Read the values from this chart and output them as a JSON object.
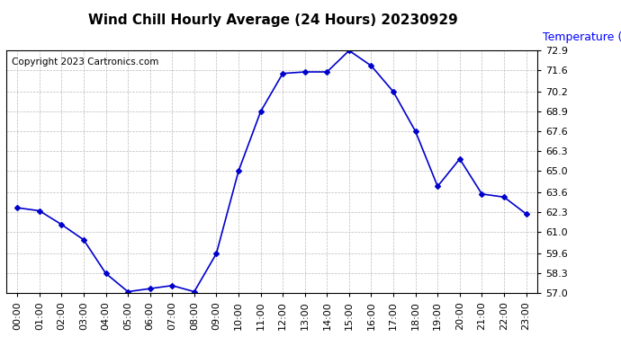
{
  "title": "Wind Chill Hourly Average (24 Hours) 20230929",
  "copyright_text": "Copyright 2023 Cartronics.com",
  "ylabel": "Temperature (°F)",
  "ylabel_color": "#0000ff",
  "hours": [
    0,
    1,
    2,
    3,
    4,
    5,
    6,
    7,
    8,
    9,
    10,
    11,
    12,
    13,
    14,
    15,
    16,
    17,
    18,
    19,
    20,
    21,
    22,
    23
  ],
  "x_labels": [
    "00:00",
    "01:00",
    "02:00",
    "03:00",
    "04:00",
    "05:00",
    "06:00",
    "07:00",
    "08:00",
    "09:00",
    "10:00",
    "11:00",
    "12:00",
    "13:00",
    "14:00",
    "15:00",
    "16:00",
    "17:00",
    "18:00",
    "19:00",
    "20:00",
    "21:00",
    "22:00",
    "23:00"
  ],
  "values": [
    62.6,
    62.4,
    61.5,
    60.5,
    58.3,
    57.1,
    57.3,
    57.5,
    57.1,
    59.6,
    65.0,
    68.9,
    71.4,
    71.5,
    71.5,
    72.9,
    71.9,
    70.2,
    67.6,
    64.0,
    65.8,
    63.5,
    63.3,
    62.2
  ],
  "line_color": "#0000cc",
  "marker": "D",
  "marker_size": 3,
  "ylim_min": 57.0,
  "ylim_max": 72.9,
  "yticks": [
    57.0,
    58.3,
    59.6,
    61.0,
    62.3,
    63.6,
    65.0,
    66.3,
    67.6,
    68.9,
    70.2,
    71.6,
    72.9
  ],
  "background_color": "#ffffff",
  "grid_color": "#bbbbbb",
  "title_fontsize": 11,
  "copyright_fontsize": 7.5,
  "ylabel_fontsize": 9,
  "tick_labelsize": 8
}
